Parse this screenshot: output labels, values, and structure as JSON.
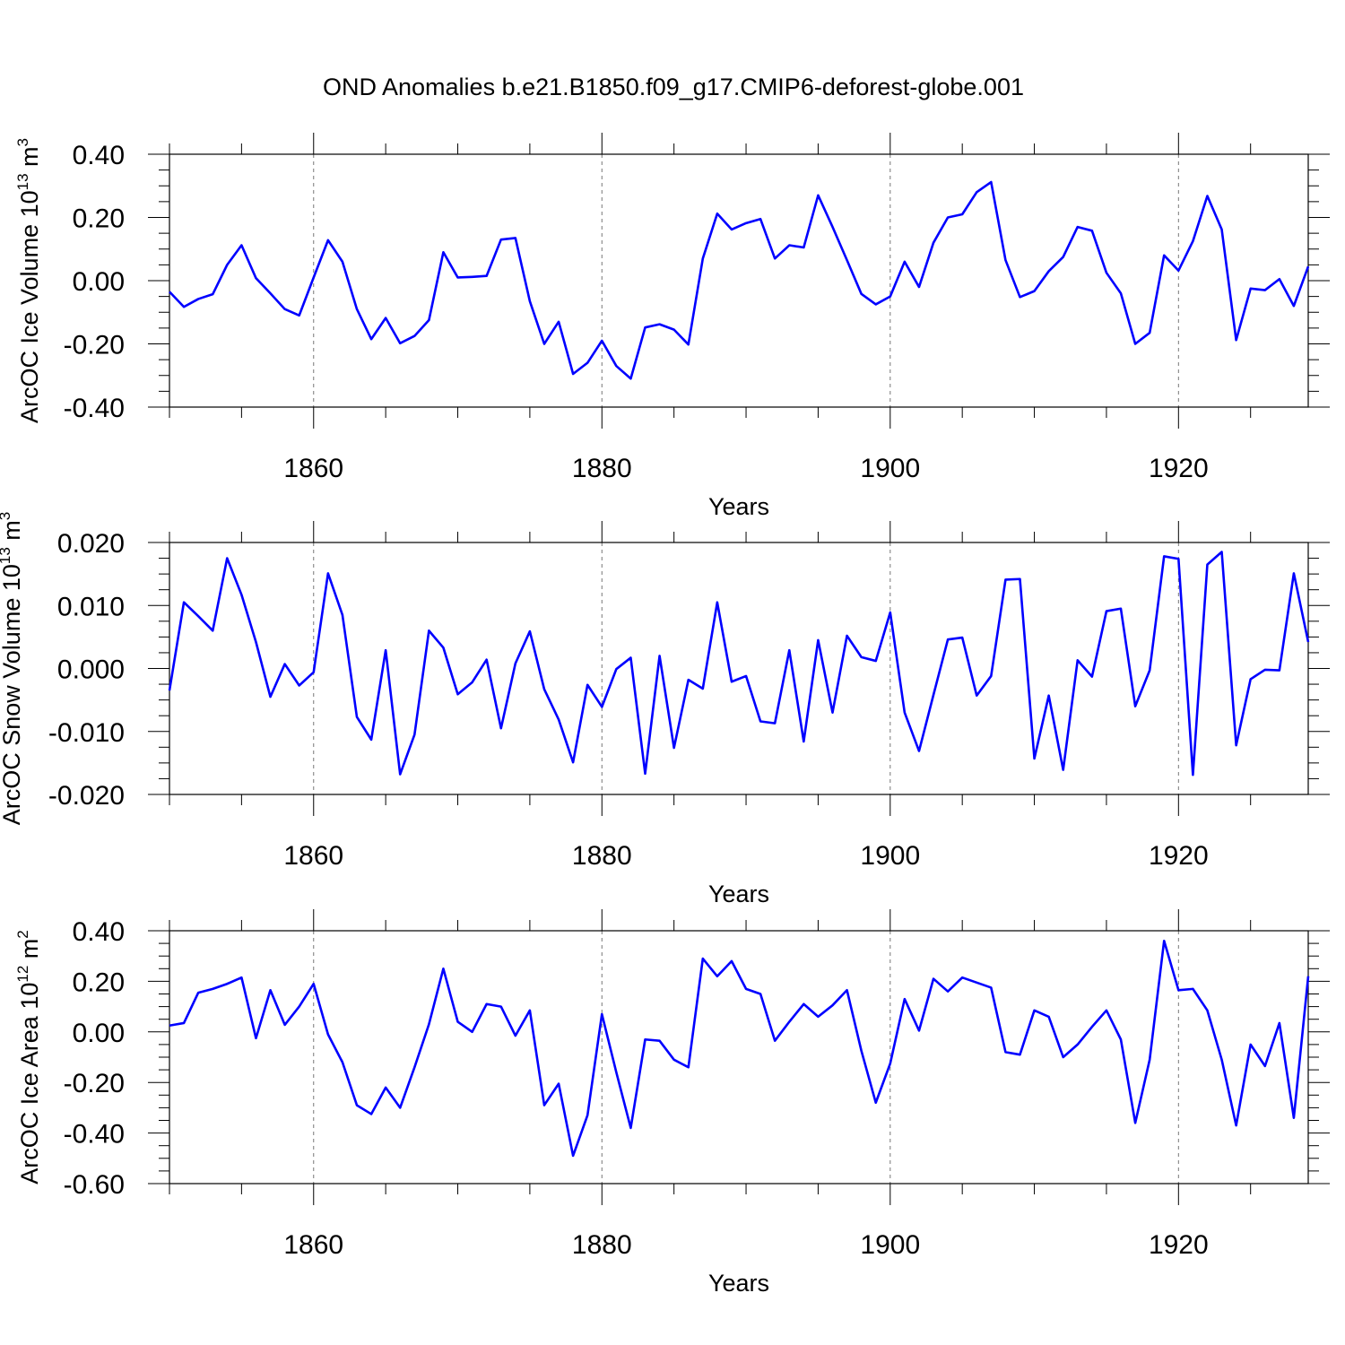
{
  "title": "OND Anomalies b.e21.B1850.f09_g17.CMIP6-deforest-globe.001",
  "colors": {
    "line": "#0000ff",
    "axis": "#000000",
    "grid": "#777777"
  },
  "chart_data": [
    {
      "type": "line",
      "id": "ice-volume",
      "ylabel": "ArcOC Ice Volume 10",
      "ylabel_sup": "13",
      "ylabel_unit": "m",
      "ylabel_unit_sup": "3",
      "xlabel": "Years",
      "xlim": [
        1850,
        1929
      ],
      "ylim": [
        -0.4,
        0.4
      ],
      "xticks": [
        1860,
        1880,
        1900,
        1920
      ],
      "xtick_labels": [
        "1860",
        "1880",
        "1900",
        "1920"
      ],
      "yticks": [
        -0.4,
        -0.2,
        0.0,
        0.2,
        0.4
      ],
      "ytick_labels": [
        "-0.40",
        "-0.20",
        "0.00",
        "0.20",
        "0.40"
      ],
      "grid": "x-dashed",
      "x_start": 1850,
      "values": [
        -0.035,
        -0.083,
        -0.058,
        -0.043,
        0.05,
        0.112,
        0.008,
        -0.04,
        -0.09,
        -0.11,
        0.01,
        0.128,
        0.06,
        -0.09,
        -0.185,
        -0.118,
        -0.198,
        -0.175,
        -0.125,
        0.09,
        0.01,
        0.012,
        0.015,
        0.13,
        0.135,
        -0.065,
        -0.2,
        -0.13,
        -0.295,
        -0.26,
        -0.19,
        -0.27,
        -0.31,
        -0.148,
        -0.138,
        -0.155,
        -0.202,
        0.07,
        0.212,
        0.162,
        0.182,
        0.195,
        0.07,
        0.112,
        0.105,
        0.27,
        0.17,
        0.065,
        -0.042,
        -0.075,
        -0.05,
        0.06,
        -0.02,
        0.12,
        0.2,
        0.21,
        0.28,
        0.312,
        0.065,
        -0.052,
        -0.033,
        0.03,
        0.075,
        0.17,
        0.158,
        0.025,
        -0.04,
        -0.2,
        -0.165,
        0.08,
        0.032,
        0.125,
        0.268,
        0.162,
        -0.188,
        -0.025,
        -0.03,
        0.005,
        -0.08,
        0.045
      ]
    },
    {
      "type": "line",
      "id": "snow-volume",
      "ylabel": "ArcOC Snow Volume 10",
      "ylabel_sup": "13",
      "ylabel_unit": "m",
      "ylabel_unit_sup": "3",
      "xlabel": "Years",
      "xlim": [
        1850,
        1929
      ],
      "ylim": [
        -0.02,
        0.02
      ],
      "xticks": [
        1860,
        1880,
        1900,
        1920
      ],
      "xtick_labels": [
        "1860",
        "1880",
        "1900",
        "1920"
      ],
      "yticks": [
        -0.02,
        -0.01,
        0.0,
        0.01,
        0.02
      ],
      "ytick_labels": [
        "-0.020",
        "-0.010",
        "0.000",
        "0.010",
        "0.020"
      ],
      "grid": "x-dashed",
      "x_start": 1850,
      "values": [
        -0.0035,
        0.0105,
        0.0083,
        0.006,
        0.0175,
        0.0117,
        0.0042,
        -0.0045,
        0.0007,
        -0.0027,
        -0.0006,
        0.0151,
        0.0085,
        -0.0077,
        -0.0113,
        0.0029,
        -0.0168,
        -0.0105,
        0.006,
        0.0033,
        -0.0041,
        -0.0022,
        0.0014,
        -0.0095,
        0.0008,
        0.0059,
        -0.0033,
        -0.0081,
        -0.0149,
        -0.0026,
        -0.0061,
        -0.0001,
        0.0017,
        -0.0167,
        0.002,
        -0.0126,
        -0.0018,
        -0.0032,
        0.0105,
        -0.0021,
        -0.0012,
        -0.0084,
        -0.0087,
        0.0029,
        -0.0116,
        0.0045,
        -0.007,
        0.0052,
        0.0018,
        0.0012,
        0.0089,
        -0.007,
        -0.0131,
        -0.0042,
        0.0046,
        0.0049,
        -0.0043,
        -0.0012,
        0.0141,
        0.0142,
        -0.0143,
        -0.0043,
        -0.0161,
        0.0013,
        -0.0013,
        0.0091,
        0.0095,
        -0.006,
        -0.0003,
        0.0178,
        0.0174,
        -0.0169,
        0.0165,
        0.0185,
        -0.0122,
        -0.0017,
        -0.0002,
        -0.0003,
        0.0151,
        0.0042
      ]
    },
    {
      "type": "line",
      "id": "ice-area",
      "ylabel": "ArcOC Ice Area 10",
      "ylabel_sup": "12",
      "ylabel_unit": "m",
      "ylabel_unit_sup": "2",
      "xlabel": "Years",
      "xlim": [
        1850,
        1929
      ],
      "ylim": [
        -0.6,
        0.4
      ],
      "xticks": [
        1860,
        1880,
        1900,
        1920
      ],
      "xtick_labels": [
        "1860",
        "1880",
        "1900",
        "1920"
      ],
      "yticks": [
        -0.6,
        -0.4,
        -0.2,
        0.0,
        0.2,
        0.4
      ],
      "ytick_labels": [
        "-0.60",
        "-0.40",
        "-0.20",
        "0.00",
        "0.20",
        "0.40"
      ],
      "grid": "x-dashed",
      "x_start": 1850,
      "values": [
        0.025,
        0.035,
        0.155,
        0.17,
        0.19,
        0.215,
        -0.025,
        0.165,
        0.028,
        0.1,
        0.19,
        -0.01,
        -0.12,
        -0.29,
        -0.325,
        -0.22,
        -0.3,
        -0.14,
        0.03,
        0.25,
        0.04,
        0.0,
        0.11,
        0.1,
        -0.015,
        0.085,
        -0.29,
        -0.205,
        -0.49,
        -0.33,
        0.07,
        -0.16,
        -0.38,
        -0.03,
        -0.035,
        -0.11,
        -0.14,
        0.29,
        0.22,
        0.28,
        0.17,
        0.15,
        -0.035,
        0.04,
        0.11,
        0.06,
        0.105,
        0.165,
        -0.075,
        -0.28,
        -0.125,
        0.13,
        0.005,
        0.21,
        0.16,
        0.215,
        0.195,
        0.175,
        -0.08,
        -0.09,
        0.085,
        0.06,
        -0.1,
        -0.05,
        0.02,
        0.085,
        -0.03,
        -0.36,
        -0.11,
        0.36,
        0.165,
        0.17,
        0.085,
        -0.11,
        -0.37,
        -0.05,
        -0.135,
        0.035,
        -0.34,
        0.22
      ]
    }
  ]
}
